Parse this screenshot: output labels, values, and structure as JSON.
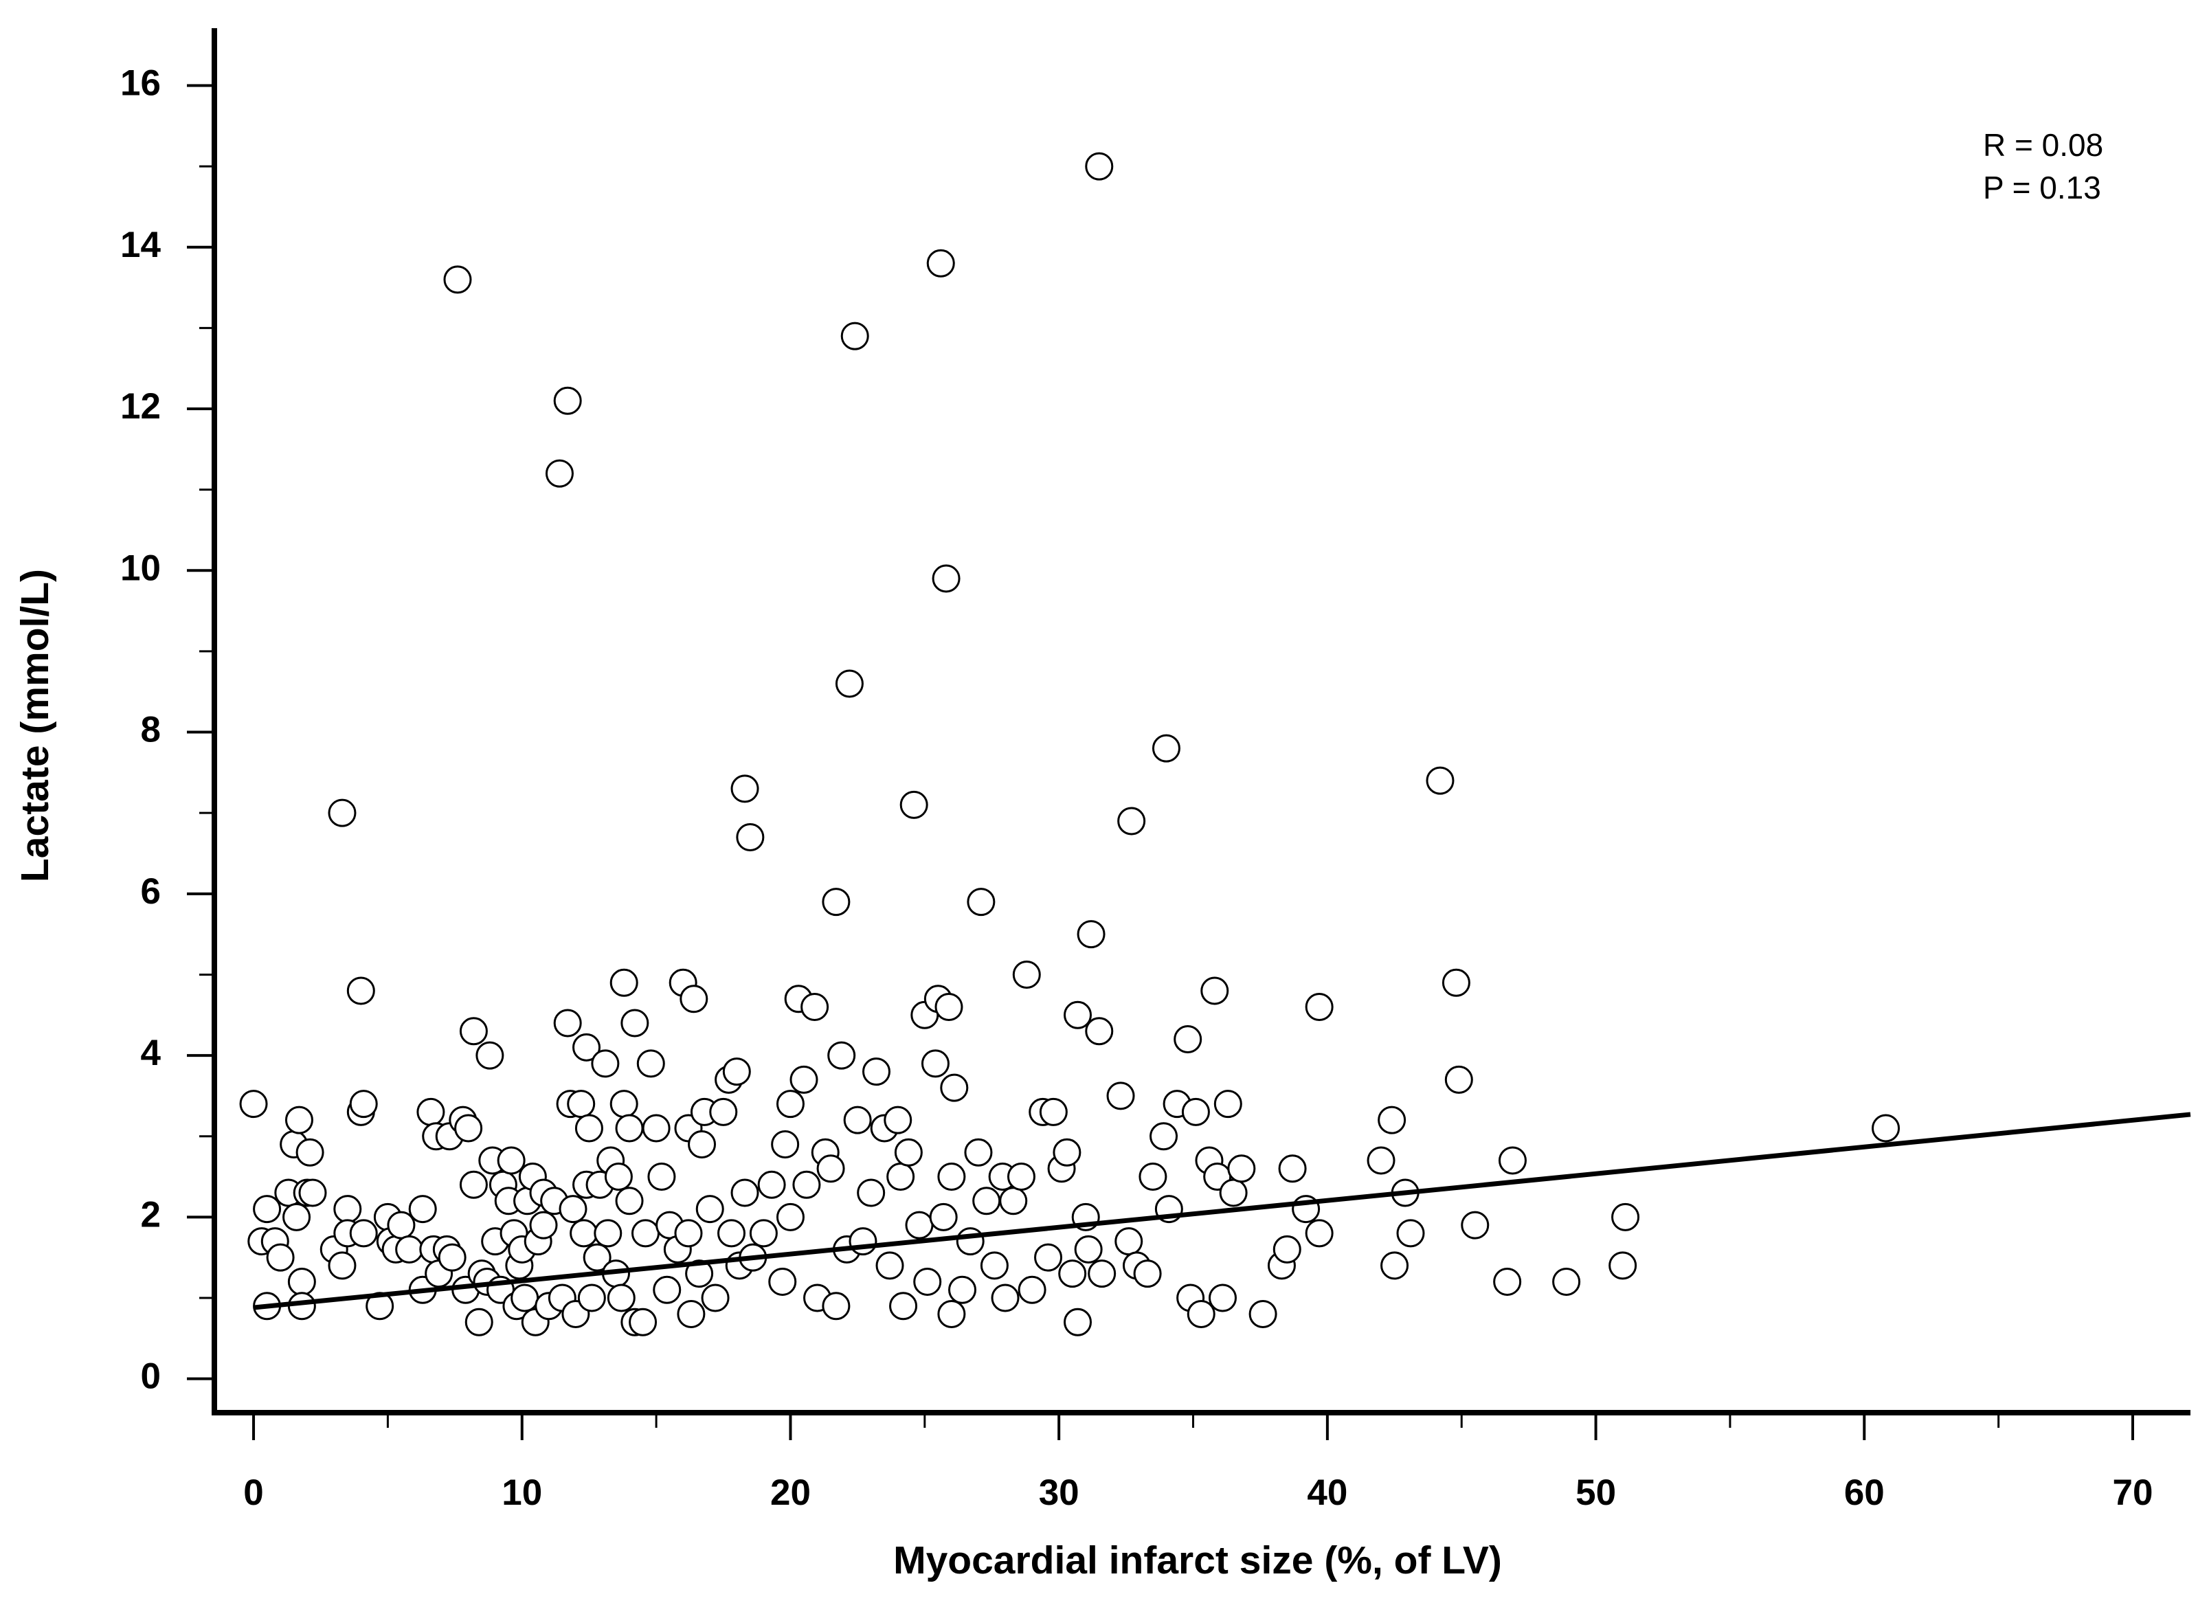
{
  "chart_data": {
    "type": "scatter",
    "xlabel": "Myocardial infarct size (%, of LV)",
    "ylabel": "Lactate (mmol/L)",
    "annotations": [
      "R = 0.08",
      "P = 0.13"
    ],
    "xlim": [
      -1.46,
      72.15
    ],
    "ylim": [
      -0.42,
      16.71
    ],
    "xticks": [
      0,
      10,
      20,
      30,
      40,
      50,
      60,
      70
    ],
    "xminorticks": [
      5,
      15,
      25,
      35,
      45,
      55,
      65
    ],
    "yticks": [
      0,
      2,
      4,
      6,
      8,
      10,
      12,
      14,
      16
    ],
    "yminorticks": [
      1,
      3,
      5,
      7,
      9,
      11,
      13,
      15
    ],
    "color": "#ffffff",
    "x": [
      0,
      0.5,
      0.3,
      0.5,
      0.8,
      1,
      1.3,
      1.5,
      1.6,
      1.7,
      1.8,
      1.8,
      2,
      2.1,
      2.2,
      3,
      3.3,
      3.3,
      3.5,
      3.5,
      4,
      4,
      4.1,
      4.1,
      4.7,
      5,
      5.1,
      5.3,
      5.5,
      5.8,
      6.3,
      6.3,
      6.6,
      6.7,
      6.8,
      6.9,
      7.2,
      7.3,
      7.4,
      7.6,
      7.8,
      7.9,
      8,
      8.2,
      8.2,
      8.4,
      8.5,
      8.7,
      8.8,
      8.9,
      9,
      9.2,
      9.3,
      9.5,
      9.6,
      9.7,
      9.8,
      9.9,
      10,
      10.1,
      10.2,
      10.4,
      10.5,
      10.6,
      10.8,
      10.8,
      11,
      11.2,
      11.4,
      11.5,
      11.7,
      11.7,
      11.8,
      11.9,
      12,
      12.2,
      12.3,
      12.4,
      12.4,
      12.5,
      12.6,
      12.8,
      12.9,
      13.1,
      13.2,
      13.3,
      13.5,
      13.6,
      13.7,
      13.8,
      13.8,
      14,
      14,
      14.2,
      14.2,
      14.5,
      14.6,
      14.8,
      15,
      15.2,
      15.4,
      15.5,
      15.8,
      16,
      16.2,
      16.2,
      16.3,
      16.4,
      16.6,
      16.7,
      16.8,
      17,
      17.2,
      17.5,
      17.7,
      17.8,
      18,
      18.1,
      18.3,
      18.3,
      18.5,
      18.6,
      19,
      19.3,
      19.7,
      19.8,
      20,
      20,
      20.3,
      20.5,
      20.6,
      20.9,
      21,
      21.3,
      21.5,
      21.7,
      21.7,
      21.9,
      22.1,
      22.2,
      22.4,
      22.5,
      22.7,
      23,
      23.2,
      23.5,
      23.7,
      24,
      24.1,
      24.2,
      24.4,
      24.6,
      24.8,
      25,
      25.1,
      25.4,
      25.5,
      25.6,
      25.7,
      25.8,
      25.9,
      26,
      26,
      26.1,
      26.4,
      26.7,
      27,
      27.1,
      27.3,
      27.6,
      27.9,
      28,
      28.3,
      28.6,
      28.8,
      29,
      29.4,
      29.6,
      29.8,
      30.1,
      30.3,
      30.5,
      30.7,
      30.7,
      31,
      31.1,
      31.2,
      31.5,
      31.5,
      31.6,
      32.3,
      32.6,
      32.7,
      32.9,
      33.3,
      33.5,
      33.9,
      34,
      34.1,
      34.4,
      34.8,
      34.9,
      35.1,
      35.3,
      35.6,
      35.8,
      35.9,
      36.1,
      36.3,
      36.5,
      36.8,
      37.6,
      38.3,
      38.5,
      38.7,
      39.2,
      39.7,
      39.7,
      42,
      42.4,
      42.5,
      42.9,
      43.1,
      44.2,
      44.8,
      44.9,
      45.5,
      46.7,
      46.9,
      48.9,
      51,
      51.1,
      60.8
    ],
    "values": [
      3.4,
      2.1,
      1.7,
      0.9,
      1.7,
      1.5,
      2.3,
      2.9,
      2.0,
      3.2,
      1.2,
      0.9,
      2.3,
      2.8,
      2.3,
      1.6,
      1.4,
      7.0,
      2.1,
      1.8,
      3.3,
      4.8,
      3.4,
      1.8,
      0.9,
      2.0,
      1.7,
      1.6,
      1.9,
      1.6,
      1.1,
      2.1,
      3.3,
      1.6,
      3.0,
      1.3,
      1.6,
      3.0,
      1.5,
      13.6,
      3.2,
      1.1,
      3.1,
      4.3,
      2.4,
      0.7,
      1.3,
      1.2,
      4.0,
      2.7,
      1.7,
      1.1,
      2.4,
      2.2,
      2.7,
      1.8,
      0.9,
      1.4,
      1.6,
      1.0,
      2.2,
      2.5,
      0.7,
      1.7,
      2.3,
      1.9,
      0.9,
      2.2,
      11.2,
      1.0,
      12.1,
      4.4,
      3.4,
      2.1,
      0.8,
      3.4,
      1.8,
      4.1,
      2.4,
      3.1,
      1.0,
      1.5,
      2.4,
      3.9,
      1.8,
      2.7,
      1.3,
      2.5,
      1.0,
      4.9,
      3.4,
      3.1,
      2.2,
      4.4,
      0.7,
      0.7,
      1.8,
      3.9,
      3.1,
      2.5,
      1.1,
      1.9,
      1.6,
      4.9,
      3.1,
      1.8,
      0.8,
      4.7,
      1.3,
      2.9,
      3.3,
      2.1,
      1.0,
      3.3,
      3.7,
      1.8,
      3.8,
      1.4,
      7.3,
      2.3,
      6.7,
      1.5,
      1.8,
      2.4,
      1.2,
      2.9,
      3.4,
      2.0,
      4.7,
      3.7,
      2.4,
      4.6,
      1.0,
      2.8,
      2.6,
      5.9,
      0.9,
      4.0,
      1.6,
      8.6,
      12.9,
      3.2,
      1.7,
      2.3,
      3.8,
      3.1,
      1.4,
      3.2,
      2.5,
      0.9,
      2.8,
      7.1,
      1.9,
      4.5,
      1.2,
      3.9,
      4.7,
      13.8,
      2.0,
      9.9,
      4.6,
      2.5,
      0.8,
      3.6,
      1.1,
      1.7,
      2.8,
      5.9,
      2.2,
      1.4,
      2.5,
      1.0,
      2.2,
      2.5,
      5.0,
      1.1,
      3.3,
      1.5,
      3.3,
      2.6,
      2.8,
      1.3,
      4.5,
      0.7,
      2.0,
      1.6,
      5.5,
      4.3,
      15.0,
      1.3,
      3.5,
      1.7,
      6.9,
      1.4,
      1.3,
      2.5,
      3.0,
      7.8,
      2.1,
      3.4,
      4.2,
      1.0,
      3.3,
      0.8,
      2.7,
      4.8,
      2.5,
      1.0,
      3.4,
      2.3,
      2.6,
      0.8,
      1.4,
      1.6,
      2.6,
      2.1,
      4.6,
      1.8,
      2.7,
      3.2,
      1.4,
      2.3,
      1.8,
      7.4,
      4.9,
      3.7,
      1.9,
      1.2,
      2.7,
      1.2,
      1.4,
      2.0,
      3.1
    ],
    "fit": {
      "x": [
        0,
        72.15
      ],
      "y": [
        0.88,
        3.27
      ],
      "color": "#000000"
    }
  }
}
